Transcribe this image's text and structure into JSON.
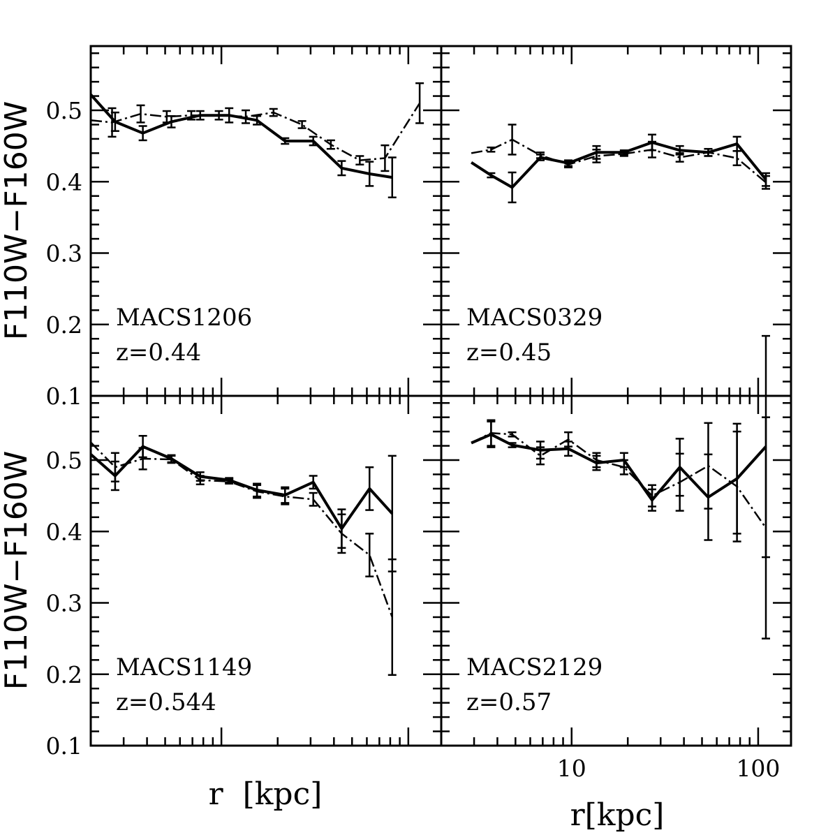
{
  "chart_data": {
    "type": "line",
    "layout": "2x2 panels",
    "ylabel": "F110W−F160W",
    "xlabels": [
      "r  [kpc]",
      "r[kpc]"
    ],
    "xscale": "log",
    "xlim": [
      2.0,
      150
    ],
    "ylim": [
      0.1,
      0.59
    ],
    "yticklabels": [
      "0.1",
      "0.2",
      "0.3",
      "0.4",
      "0.5"
    ],
    "xticklabels": [
      "10",
      "100"
    ],
    "legend": "none",
    "panels": [
      {
        "name": "MACS1206",
        "cluster": "MACS1206",
        "redshift": "z=0.44",
        "series": [
          {
            "name": "solid",
            "style": "solid",
            "x": [
              2.0,
              2.7,
              3.8,
              5.4,
              7.7,
              11.0,
              15.5,
              21.9,
              31.0,
              44.0,
              62.0,
              82.0
            ],
            "y": [
              0.522,
              0.484,
              0.468,
              0.484,
              0.493,
              0.493,
              0.486,
              0.457,
              0.457,
              0.419,
              0.411,
              0.406
            ],
            "err": [
              0.0,
              0.013,
              0.01,
              0.008,
              0.006,
              0.01,
              0.006,
              0.004,
              0.006,
              0.01,
              0.017,
              0.028
            ]
          },
          {
            "name": "dash-dot",
            "style": "dashdot",
            "x": [
              2.0,
              2.6,
              3.7,
              5.1,
              6.9,
              9.7,
              13.5,
              19.0,
              27.0,
              38.5,
              55.0,
              75.0,
              115.0
            ],
            "y": [
              0.486,
              0.483,
              0.495,
              0.491,
              0.493,
              0.493,
              0.491,
              0.497,
              0.48,
              0.452,
              0.43,
              0.433,
              0.51
            ],
            "err": [
              0.0,
              0.02,
              0.012,
              0.008,
              0.006,
              0.006,
              0.009,
              0.005,
              0.005,
              0.006,
              0.006,
              0.018,
              0.028
            ]
          }
        ]
      },
      {
        "name": "MACS0329",
        "cluster": "MACS0329",
        "redshift": "z=0.45",
        "series": [
          {
            "name": "solid",
            "style": "solid",
            "x": [
              2.9,
              3.7,
              4.8,
              6.8,
              9.6,
              13.6,
              19.1,
              27.0,
              38.0,
              54.0,
              77.0,
              110.0
            ],
            "y": [
              0.427,
              0.409,
              0.392,
              0.434,
              0.426,
              0.441,
              0.441,
              0.455,
              0.444,
              0.441,
              0.453,
              0.403
            ],
            "err": [
              0.0,
              0.003,
              0.021,
              0.004,
              0.004,
              0.009,
              0.003,
              0.011,
              0.006,
              0.005,
              0.01,
              0.009
            ]
          },
          {
            "name": "dash-dot",
            "style": "dashdot",
            "x": [
              2.9,
              3.7,
              4.8,
              6.8,
              9.6,
              13.6,
              19.1,
              27.0,
              38.0,
              54.0,
              77.0,
              110.0
            ],
            "y": [
              0.44,
              0.445,
              0.459,
              0.437,
              0.424,
              0.436,
              0.439,
              0.445,
              0.434,
              0.441,
              0.433,
              0.399
            ],
            "err": [
              0.0,
              0.003,
              0.021,
              0.004,
              0.004,
              0.009,
              0.003,
              0.011,
              0.006,
              0.005,
              0.01,
              0.009
            ]
          }
        ]
      },
      {
        "name": "MACS1149",
        "cluster": "MACS1149",
        "redshift": "z=0.544",
        "series": [
          {
            "name": "solid",
            "style": "solid",
            "x": [
              2.0,
              2.7,
              3.8,
              5.4,
              7.7,
              11.0,
              15.5,
              21.9,
              31.0,
              44.0,
              62.0,
              82.0
            ],
            "y": [
              0.508,
              0.478,
              0.519,
              0.502,
              0.477,
              0.472,
              0.458,
              0.451,
              0.469,
              0.404,
              0.46,
              0.425
            ],
            "err": [
              0.0,
              0.02,
              0.015,
              0.005,
              0.006,
              0.003,
              0.009,
              0.011,
              0.009,
              0.027,
              0.03,
              0.081
            ]
          },
          {
            "name": "dash-dot",
            "style": "dashdot",
            "x": [
              2.0,
              2.7,
              3.8,
              5.4,
              7.7,
              11.0,
              15.5,
              21.9,
              31.0,
              44.0,
              62.0,
              82.0
            ],
            "y": [
              0.525,
              0.49,
              0.502,
              0.501,
              0.472,
              0.47,
              0.456,
              0.449,
              0.445,
              0.397,
              0.367,
              0.28
            ],
            "err": [
              0.0,
              0.02,
              0.015,
              0.005,
              0.006,
              0.003,
              0.009,
              0.011,
              0.009,
              0.027,
              0.03,
              0.081
            ]
          }
        ]
      },
      {
        "name": "MACS2129",
        "cluster": "MACS2129",
        "redshift": "z=0.57",
        "series": [
          {
            "name": "solid",
            "style": "solid",
            "x": [
              2.9,
              3.7,
              4.8,
              6.8,
              9.6,
              13.6,
              19.1,
              27.0,
              38.0,
              54.0,
              77.0,
              110.0
            ],
            "y": [
              0.524,
              0.536,
              0.521,
              0.514,
              0.516,
              0.496,
              0.5,
              0.444,
              0.49,
              0.448,
              0.474,
              0.519
            ],
            "err": [
              0.0,
              0.018,
              0.003,
              0.012,
              0.01,
              0.01,
              0.01,
              0.015,
              0.04,
              0.06,
              0.077,
              0.155
            ]
          },
          {
            "name": "dash-dot",
            "style": "dashdot",
            "x": [
              2.9,
              3.7,
              4.8,
              6.8,
              9.6,
              13.6,
              19.1,
              27.0,
              38.0,
              54.0,
              77.0,
              110.0
            ],
            "y": [
              0.524,
              0.538,
              0.536,
              0.506,
              0.529,
              0.5,
              0.49,
              0.45,
              0.469,
              0.492,
              0.463,
              0.405
            ],
            "err": [
              0.0,
              0.018,
              0.003,
              0.012,
              0.01,
              0.01,
              0.01,
              0.015,
              0.04,
              0.06,
              0.077,
              0.155
            ]
          }
        ]
      }
    ]
  }
}
